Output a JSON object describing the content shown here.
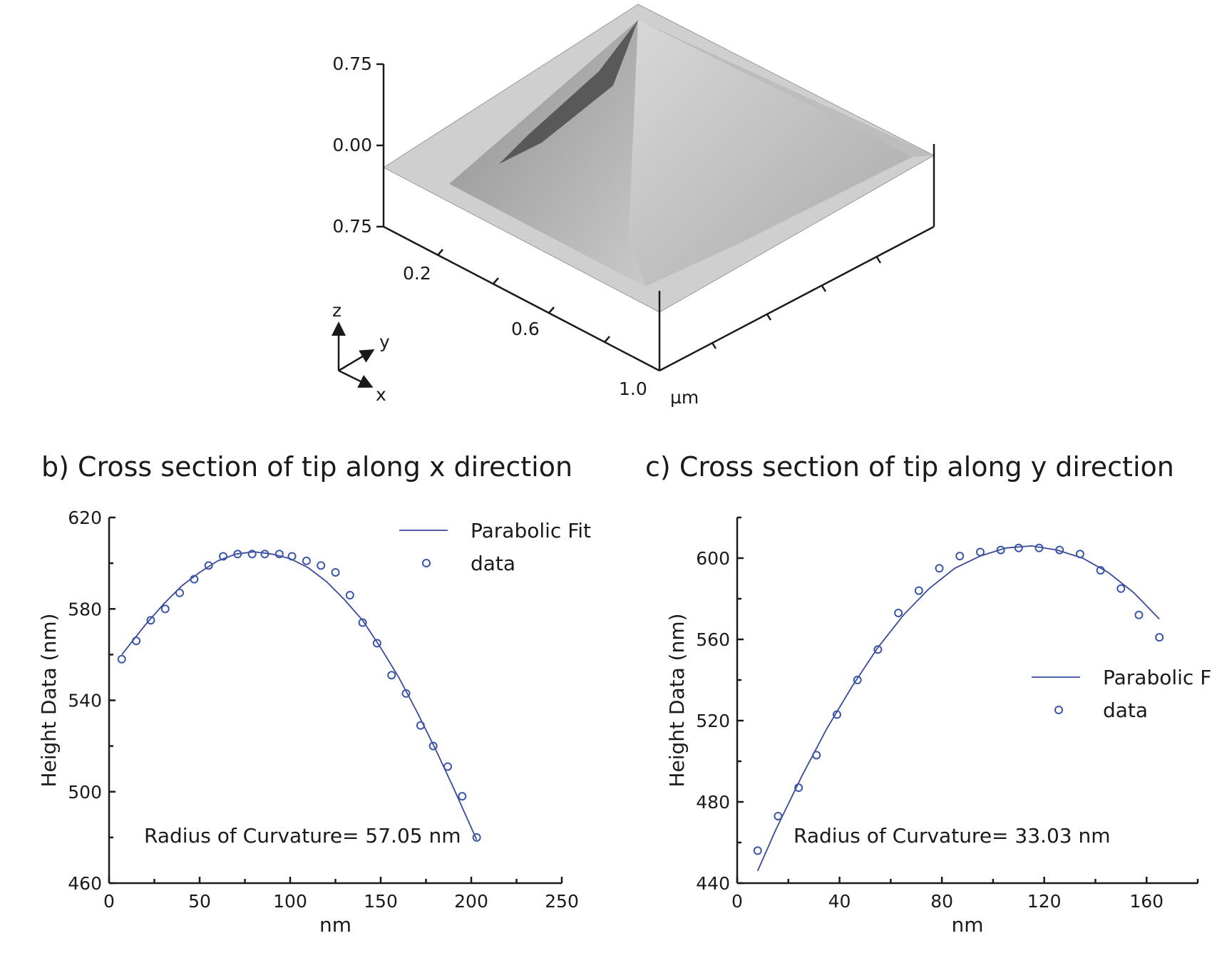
{
  "afm_panel": {
    "z_ticks": [
      "0.75",
      "0.00",
      "0.75"
    ],
    "x_ticks": [
      "0.2",
      "0.6",
      "1.0"
    ],
    "unit": "µm",
    "axes_labels": {
      "z": "z",
      "y": "y",
      "x": "x"
    }
  },
  "chart_data": [
    {
      "type": "scatter",
      "panel": "b)",
      "title": "Cross section of tip along x direction",
      "xlabel": "nm",
      "ylabel": "Height Data (nm)",
      "xlim": [
        0,
        250
      ],
      "ylim": [
        460,
        620
      ],
      "xticks": [
        "0",
        "50",
        "100",
        "150",
        "200",
        "250"
      ],
      "yticks": [
        "460",
        "500",
        "540",
        "580",
        "620"
      ],
      "annotation": "Radius of Curvature= 57.05 nm",
      "legend": {
        "placement": "top-right",
        "entries": [
          "Parabolic Fit",
          "data"
        ]
      },
      "series": [
        {
          "name": "data",
          "kind": "points",
          "x": [
            7,
            15,
            23,
            31,
            39,
            47,
            55,
            63,
            71,
            79,
            86,
            94,
            101,
            109,
            117,
            125,
            133,
            140,
            148,
            156,
            164,
            172,
            179,
            187,
            195,
            203
          ],
          "y": [
            558,
            566,
            575,
            580,
            587,
            593,
            599,
            603,
            604,
            604,
            604,
            604,
            603,
            601,
            599,
            596,
            586,
            574,
            565,
            551,
            543,
            529,
            520,
            511,
            498,
            480
          ]
        },
        {
          "name": "Parabolic Fit",
          "kind": "line",
          "x": [
            7,
            20,
            30,
            40,
            50,
            60,
            70,
            80,
            90,
            100,
            110,
            120,
            130,
            140,
            150,
            160,
            170,
            180,
            190,
            203
          ],
          "y": [
            560,
            573,
            582,
            590,
            596,
            601,
            604,
            605,
            604,
            602,
            598,
            592,
            584,
            575,
            563,
            550,
            535,
            519,
            502,
            479
          ]
        }
      ]
    },
    {
      "type": "scatter",
      "panel": "c)",
      "title": "Cross section of tip along y direction",
      "xlabel": "nm",
      "ylabel": "Height Data (nm)",
      "xlim": [
        0,
        180
      ],
      "ylim": [
        440,
        620
      ],
      "xticks": [
        "0",
        "40",
        "80",
        "120",
        "160"
      ],
      "yticks": [
        "440",
        "480",
        "520",
        "560",
        "600"
      ],
      "annotation": "Radius of Curvature= 33.03 nm",
      "legend": {
        "placement": "center-right",
        "entries": [
          "Parabolic F",
          "data"
        ]
      },
      "series": [
        {
          "name": "data",
          "kind": "points",
          "x": [
            8,
            16,
            24,
            31,
            39,
            47,
            55,
            63,
            71,
            79,
            87,
            95,
            103,
            110,
            118,
            126,
            134,
            142,
            150,
            157,
            165
          ],
          "y": [
            456,
            473,
            487,
            503,
            523,
            540,
            555,
            573,
            584,
            595,
            601,
            603,
            604,
            605,
            605,
            604,
            602,
            594,
            585,
            572,
            561
          ]
        },
        {
          "name": "Parabolic Fit",
          "kind": "line",
          "x": [
            8,
            15,
            25,
            35,
            45,
            55,
            65,
            75,
            85,
            95,
            105,
            115,
            125,
            135,
            145,
            155,
            165
          ],
          "y": [
            446,
            466,
            492,
            516,
            537,
            556,
            572,
            585,
            595,
            601,
            605,
            606,
            604,
            600,
            593,
            583,
            570
          ]
        }
      ]
    }
  ]
}
